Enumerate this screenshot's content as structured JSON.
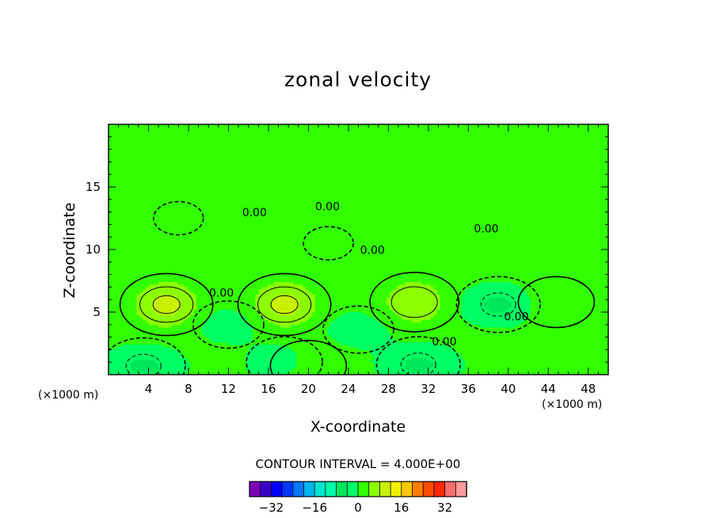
{
  "chart_data": {
    "type": "heatmap",
    "title": "zonal velocity",
    "xlabel": "X-coordinate",
    "ylabel": "Z-coordinate",
    "x_unit_label": "(×1000 m)",
    "xlim": [
      0,
      50
    ],
    "ylim": [
      0,
      20
    ],
    "x_ticks": [
      4,
      8,
      12,
      16,
      20,
      24,
      28,
      32,
      36,
      40,
      44,
      48
    ],
    "y_ticks": [
      5,
      10,
      15
    ],
    "contour_interval_text": "CONTOUR INTERVAL = 4.000E+00",
    "contour_interval": 4,
    "contour_label": "0.00",
    "contour_labels": [
      {
        "x": 14.6,
        "z": 12.9
      },
      {
        "x": 21.9,
        "z": 13.4
      },
      {
        "x": 26.4,
        "z": 9.9
      },
      {
        "x": 37.8,
        "z": 11.6
      },
      {
        "x": 11.3,
        "z": 6.5
      },
      {
        "x": 40.8,
        "z": 4.6
      },
      {
        "x": 33.6,
        "z": 2.6
      }
    ],
    "colorbar": {
      "levels": [
        -36,
        -32,
        -28,
        -24,
        -20,
        -16,
        -12,
        -8,
        -4,
        0,
        4,
        8,
        12,
        16,
        20,
        24,
        28,
        32,
        36
      ],
      "tick_labels": [
        "−32",
        "−16",
        "0",
        "16",
        "32"
      ],
      "tick_values": [
        -32,
        -16,
        0,
        16,
        32
      ],
      "colors": [
        "#7d00b9",
        "#3a00c8",
        "#0000ff",
        "#0038ff",
        "#0078ff",
        "#00b4f0",
        "#00e6d2",
        "#00ffaa",
        "#00e65a",
        "#00ff64",
        "#32ff00",
        "#8cff00",
        "#c8f000",
        "#f0f000",
        "#ffc800",
        "#ff7d00",
        "#ff4b00",
        "#ff2800",
        "#ff6e6e",
        "#ff9b9b"
      ]
    },
    "features": [
      {
        "kind": "max",
        "x": 5.8,
        "z": 5.6,
        "value": 10
      },
      {
        "kind": "max",
        "x": 17.6,
        "z": 5.6,
        "value": 10
      },
      {
        "kind": "max",
        "x": 30.6,
        "z": 5.8,
        "value": 8
      },
      {
        "kind": "max",
        "x": 44.8,
        "z": 5.8,
        "value": 4
      },
      {
        "kind": "max",
        "x": 20.0,
        "z": 0.7,
        "value": 4
      },
      {
        "kind": "min",
        "x": 39.0,
        "z": 5.6,
        "value": -6
      },
      {
        "kind": "min",
        "x": 3.5,
        "z": 0.7,
        "value": -6
      },
      {
        "kind": "min",
        "x": 17.6,
        "z": 1.0,
        "value": -4
      },
      {
        "kind": "min",
        "x": 31.0,
        "z": 0.8,
        "value": -6
      },
      {
        "kind": "min",
        "x": 12.0,
        "z": 4.0,
        "value": -3
      },
      {
        "kind": "min",
        "x": 25.0,
        "z": 3.6,
        "value": -3
      },
      {
        "kind": "min",
        "x": 7.0,
        "z": 12.5,
        "value": -1
      },
      {
        "kind": "min",
        "x": 22.0,
        "z": 10.5,
        "value": -1
      }
    ]
  }
}
